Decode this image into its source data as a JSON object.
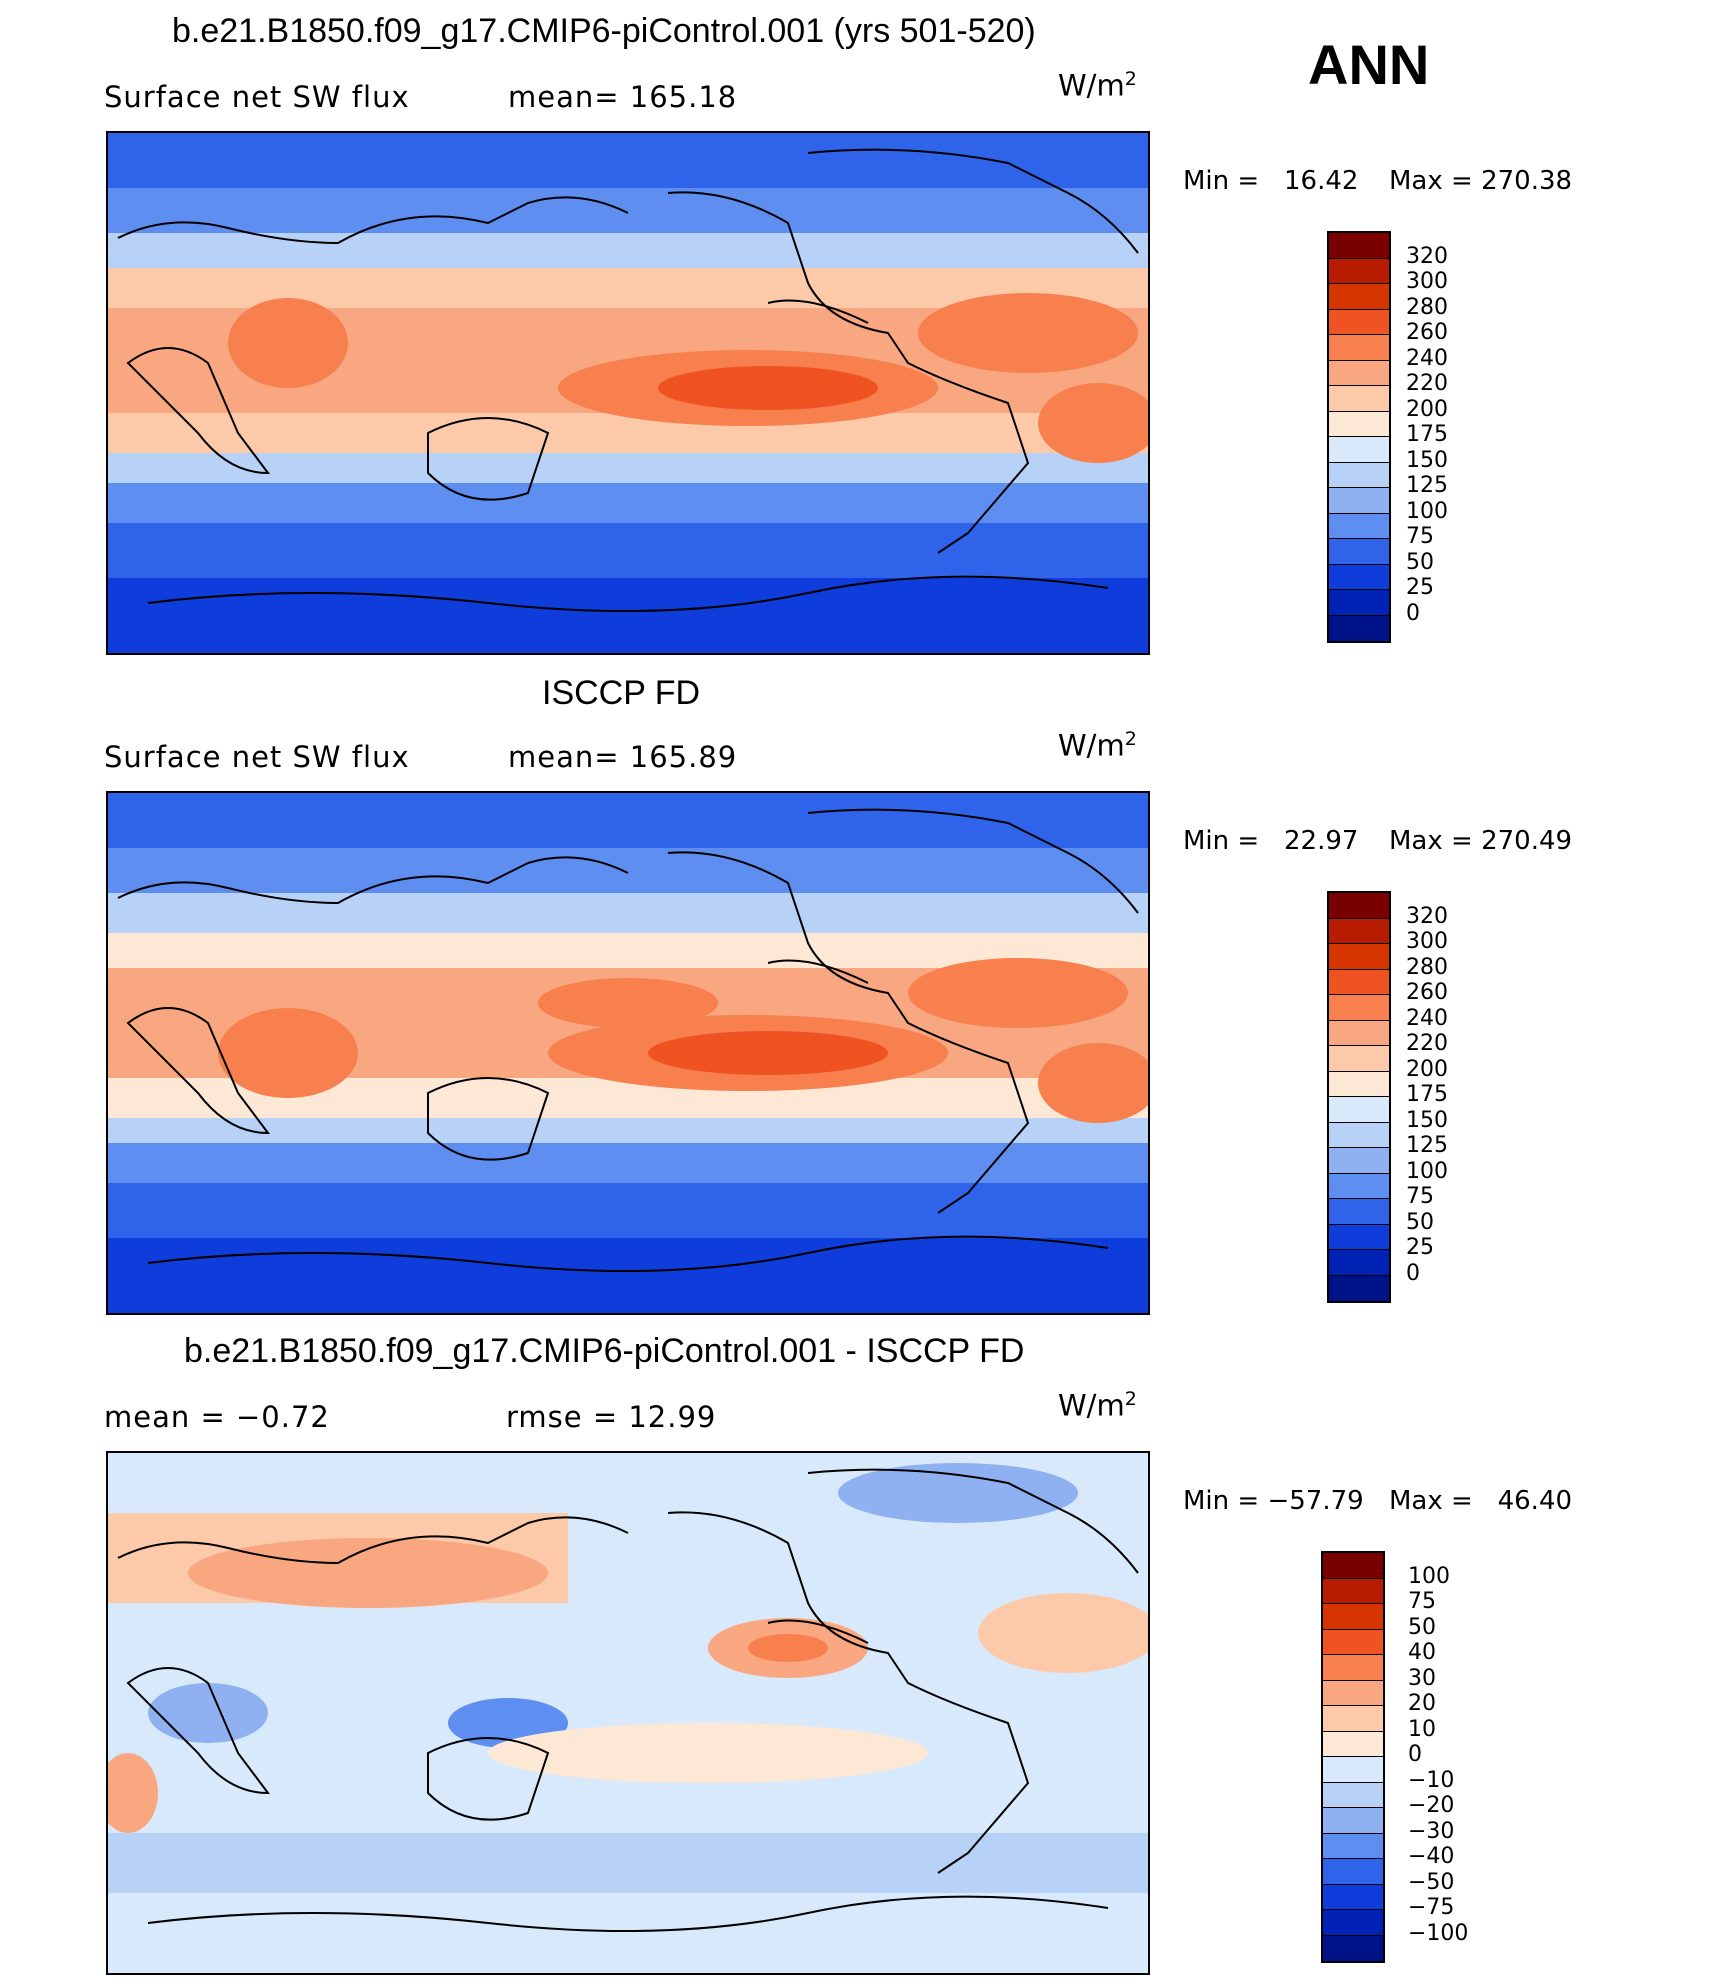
{
  "header": {
    "case_title": "b.e21.B1850.f09_g17.CMIP6-piControl.001 (yrs 501-520)",
    "season": "ANN"
  },
  "panels": [
    {
      "id": "model",
      "title": "",
      "variable": "Surface net SW flux",
      "stat_text": "mean= 165.18",
      "units": "W/m",
      "units_exp": "2",
      "min_text": "Min =   16.42",
      "max_text": "Max = 270.38",
      "levels": [
        "320",
        "300",
        "280",
        "260",
        "240",
        "220",
        "200",
        "175",
        "150",
        "125",
        "100",
        "75",
        "50",
        "25",
        "0"
      ],
      "colors": [
        "#7a0000",
        "#b81c00",
        "#d63500",
        "#f05322",
        "#f8804e",
        "#f9a781",
        "#fcc9a9",
        "#fde8d6",
        "#d7e9fb",
        "#b8d1f7",
        "#8fb1f2",
        "#5d8ef0",
        "#2f64ea",
        "#0e3ddb",
        "#0022b5",
        "#001287"
      ]
    },
    {
      "id": "obs",
      "title": "ISCCP FD",
      "variable": "Surface net SW flux",
      "stat_text": "mean= 165.89",
      "units": "W/m",
      "units_exp": "2",
      "min_text": "Min =   22.97",
      "max_text": "Max = 270.49",
      "levels": [
        "320",
        "300",
        "280",
        "260",
        "240",
        "220",
        "200",
        "175",
        "150",
        "125",
        "100",
        "75",
        "50",
        "25",
        "0"
      ],
      "colors": [
        "#7a0000",
        "#b81c00",
        "#d63500",
        "#f05322",
        "#f8804e",
        "#f9a781",
        "#fcc9a9",
        "#fde8d6",
        "#d7e9fb",
        "#b8d1f7",
        "#8fb1f2",
        "#5d8ef0",
        "#2f64ea",
        "#0e3ddb",
        "#0022b5",
        "#001287"
      ]
    },
    {
      "id": "diff",
      "title": "b.e21.B1850.f09_g17.CMIP6-piControl.001 - ISCCP FD",
      "variable": "mean =   −0.72",
      "stat_text": "rmse =   12.99",
      "units": "W/m",
      "units_exp": "2",
      "min_text": "Min = −57.79",
      "max_text": "Max =   46.40",
      "levels": [
        "100",
        "75",
        "50",
        "40",
        "30",
        "20",
        "10",
        "0",
        "−10",
        "−20",
        "−30",
        "−40",
        "−50",
        "−75",
        "−100"
      ],
      "colors": [
        "#7a0000",
        "#b81c00",
        "#d63500",
        "#f05322",
        "#f8804e",
        "#f9a781",
        "#fcc9a9",
        "#fde8d6",
        "#d7e9fb",
        "#b8d1f7",
        "#8fb1f2",
        "#5d8ef0",
        "#2f64ea",
        "#0e3ddb",
        "#0022b5",
        "#001287"
      ]
    }
  ]
}
